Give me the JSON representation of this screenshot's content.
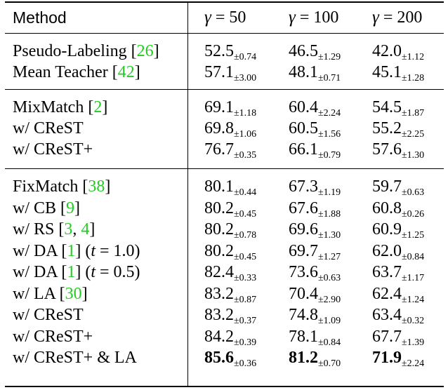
{
  "header": {
    "method": "Method",
    "gamma_symbol": "γ",
    "eq": "=",
    "cols": [
      "50",
      "100",
      "200"
    ]
  },
  "groups": [
    {
      "rows": [
        {
          "method": "Pseudo-Labeling [",
          "ref": "26",
          "after": "]",
          "cells": [
            {
              "v": "52.5",
              "pm": "±0.74"
            },
            {
              "v": "46.5",
              "pm": "±1.29"
            },
            {
              "v": "42.0",
              "pm": "±1.12"
            }
          ]
        },
        {
          "method": "Mean Teacher [",
          "ref": "42",
          "after": "]",
          "cells": [
            {
              "v": "57.1",
              "pm": "±3.00"
            },
            {
              "v": "48.1",
              "pm": "±0.71"
            },
            {
              "v": "45.1",
              "pm": "±1.28"
            }
          ]
        }
      ]
    },
    {
      "rows": [
        {
          "method": "MixMatch [",
          "ref": "2",
          "after": "]",
          "cells": [
            {
              "v": "69.1",
              "pm": "±1.18"
            },
            {
              "v": "60.4",
              "pm": "±2.24"
            },
            {
              "v": "54.5",
              "pm": "±1.87"
            }
          ]
        },
        {
          "method": "w/ CReST",
          "cells": [
            {
              "v": "69.8",
              "pm": "±1.06"
            },
            {
              "v": "60.5",
              "pm": "±1.56"
            },
            {
              "v": "55.2",
              "pm": "±2.25"
            }
          ]
        },
        {
          "method": "w/ CReST+",
          "cells": [
            {
              "v": "76.7",
              "pm": "±0.35"
            },
            {
              "v": "66.1",
              "pm": "±0.79"
            },
            {
              "v": "57.6",
              "pm": "±1.30"
            }
          ]
        }
      ]
    },
    {
      "rows": [
        {
          "method": "FixMatch [",
          "ref": "38",
          "after": "]",
          "cells": [
            {
              "v": "80.1",
              "pm": "±0.44"
            },
            {
              "v": "67.3",
              "pm": "±1.19"
            },
            {
              "v": "59.7",
              "pm": "±0.63"
            }
          ]
        },
        {
          "method": "w/ CB [",
          "ref": "9",
          "after": "]",
          "cells": [
            {
              "v": "80.2",
              "pm": "±0.45"
            },
            {
              "v": "67.6",
              "pm": "±1.88"
            },
            {
              "v": "60.8",
              "pm": "±0.26"
            }
          ]
        },
        {
          "method": "w/ RS [",
          "ref": "3",
          "mid": ", ",
          "ref2": "4",
          "after": "]",
          "cells": [
            {
              "v": "80.2",
              "pm": "±0.78"
            },
            {
              "v": "69.6",
              "pm": "±1.30"
            },
            {
              "v": "60.9",
              "pm": "±1.25"
            }
          ]
        },
        {
          "method": "w/ DA [",
          "ref": "1",
          "after": "] (",
          "param": "t",
          "param_eq": " = 1.0)",
          "cells": [
            {
              "v": "80.2",
              "pm": "±0.45"
            },
            {
              "v": "69.7",
              "pm": "±1.27"
            },
            {
              "v": "62.0",
              "pm": "±0.84"
            }
          ]
        },
        {
          "method": "w/ DA [",
          "ref": "1",
          "after": "] (",
          "param": "t",
          "param_eq": " = 0.5)",
          "cells": [
            {
              "v": "82.4",
              "pm": "±0.33"
            },
            {
              "v": "73.6",
              "pm": "±0.63"
            },
            {
              "v": "63.7",
              "pm": "±1.17"
            }
          ]
        },
        {
          "method": "w/ LA [",
          "ref": "30",
          "after": "]",
          "cells": [
            {
              "v": "83.2",
              "pm": "±0.87"
            },
            {
              "v": "70.4",
              "pm": "±2.90"
            },
            {
              "v": "62.4",
              "pm": "±1.24"
            }
          ]
        },
        {
          "method": "w/ CReST",
          "cells": [
            {
              "v": "83.2",
              "pm": "±0.37"
            },
            {
              "v": "74.8",
              "pm": "±1.09"
            },
            {
              "v": "63.4",
              "pm": "±0.32"
            }
          ]
        },
        {
          "method": "w/ CReST+",
          "cells": [
            {
              "v": "84.2",
              "pm": "±0.39"
            },
            {
              "v": "78.1",
              "pm": "±0.84"
            },
            {
              "v": "67.7",
              "pm": "±1.39"
            }
          ]
        },
        {
          "method": "w/ CReST+ & LA",
          "bold": true,
          "cells": [
            {
              "v": "85.6",
              "pm": "±0.36"
            },
            {
              "v": "81.2",
              "pm": "±0.70"
            },
            {
              "v": "71.9",
              "pm": "±2.24"
            }
          ]
        }
      ]
    }
  ],
  "colors": {
    "reference_link": "#22cc22"
  }
}
